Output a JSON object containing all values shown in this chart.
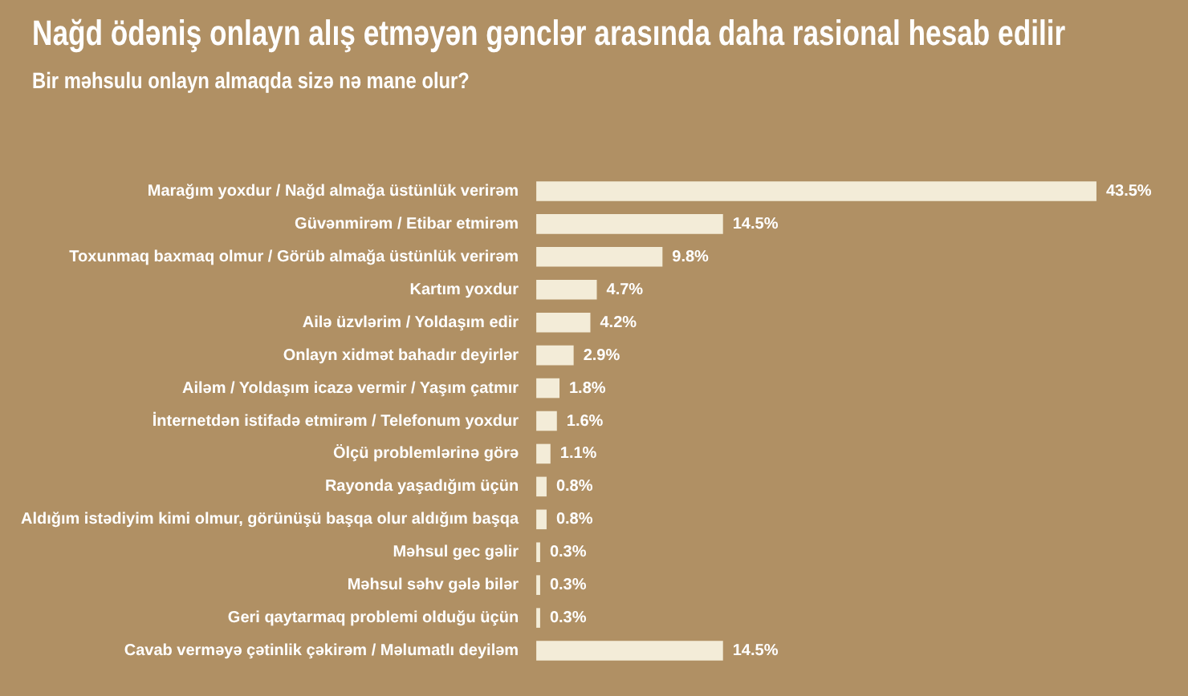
{
  "chart_data": {
    "type": "bar",
    "orientation": "horizontal",
    "title": "Nağd ödəniş onlayn alış etməyən gənclər arasında daha rasional hesab edilir",
    "subtitle": "Bir məhsulu onlayn almaqda sizə nə mane olur?",
    "categories": [
      "Marağım yoxdur / Nağd almağa üstünlük verirəm",
      "Güvənmirəm / Etibar etmirəm",
      "Toxunmaq baxmaq olmur / Görüb almağa üstünlük verirəm",
      "Kartım yoxdur",
      "Ailə üzvlərim / Yoldaşım edir",
      "Onlayn xidmət bahadır deyirlər",
      "Ailəm / Yoldaşım icazə vermir / Yaşım çatmır",
      "İnternetdən istifadə etmirəm / Telefonum yoxdur",
      "Ölçü problemlərinə görə",
      "Rayonda yaşadığım üçün",
      "Aldığım istədiyim kimi olmur, görünüşü başqa olur aldığım başqa",
      "Məhsul gec gəlir",
      "Məhsul səhv gələ bilər",
      "Geri qaytarmaq problemi olduğu üçün",
      "Cavab verməyə çətinlik çəkirəm / Məlumatlı deyiləm"
    ],
    "values": [
      43.5,
      14.5,
      9.8,
      4.7,
      4.2,
      2.9,
      1.8,
      1.6,
      1.1,
      0.8,
      0.8,
      0.3,
      0.3,
      0.3,
      14.5
    ],
    "value_labels": [
      "43.5%",
      "14.5%",
      "9.8%",
      "4.7%",
      "4.2%",
      "2.9%",
      "1.8%",
      "1.6%",
      "1.1%",
      "0.8%",
      "0.8%",
      "0.3%",
      "0.3%",
      "0.3%",
      "14.5%"
    ],
    "color": "#f3ecd8",
    "tick_labels": "y"
  }
}
